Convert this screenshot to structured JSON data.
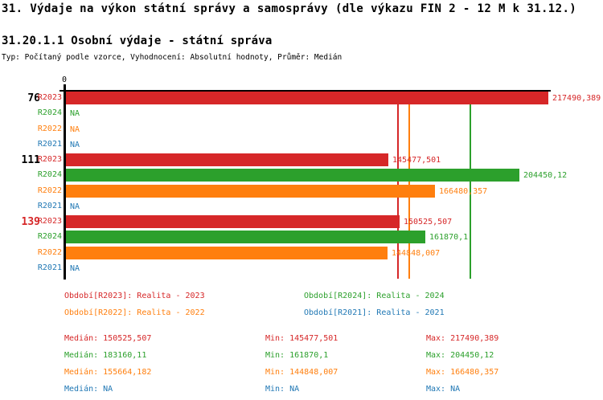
{
  "header": {
    "title": "31. Výdaje na výkon státní správy a samosprávy (dle výkazu FIN 2 - 12 M k 31.12.)",
    "subtitle": "31.20.1.1 Osobní výdaje - státní správa",
    "meta": "Typ: Počítaný podle vzorce, Vyhodnocení: Absolutní hodnoty, Průměr: Medián"
  },
  "colors": {
    "R2023": "#d62728",
    "R2024": "#2ca02c",
    "R2022": "#ff7f0e",
    "R2021": "#1f77b4",
    "axis": "#000000",
    "group_label_default": "#000000",
    "group_label_alert": "#d62728"
  },
  "chart_data": {
    "type": "bar",
    "orientation": "horizontal",
    "axis_origin_label": "0",
    "xlim": [
      0,
      217490.389
    ],
    "grid": false,
    "series_order": [
      "R2023",
      "R2024",
      "R2022",
      "R2021"
    ],
    "groups": [
      {
        "label": "76",
        "label_color": "#000000",
        "bars": [
          {
            "series": "R2023",
            "value": 217490.389,
            "label": "217490,389"
          },
          {
            "series": "R2024",
            "value": null,
            "label": "NA"
          },
          {
            "series": "R2022",
            "value": null,
            "label": "NA"
          },
          {
            "series": "R2021",
            "value": null,
            "label": "NA"
          }
        ]
      },
      {
        "label": "111",
        "label_color": "#000000",
        "bars": [
          {
            "series": "R2023",
            "value": 145477.501,
            "label": "145477,501"
          },
          {
            "series": "R2024",
            "value": 204450.12,
            "label": "204450,12"
          },
          {
            "series": "R2022",
            "value": 166480.357,
            "label": "166480,357"
          },
          {
            "series": "R2021",
            "value": null,
            "label": "NA"
          }
        ]
      },
      {
        "label": "139",
        "label_color": "#d62728",
        "bars": [
          {
            "series": "R2023",
            "value": 150525.507,
            "label": "150525,507"
          },
          {
            "series": "R2024",
            "value": 161870.1,
            "label": "161870,1"
          },
          {
            "series": "R2022",
            "value": 144848.007,
            "label": "144848,007"
          },
          {
            "series": "R2021",
            "value": null,
            "label": "NA"
          }
        ]
      }
    ],
    "median_lines": [
      {
        "series": "R2023",
        "value": 150525.507
      },
      {
        "series": "R2022",
        "value": 155664.182
      },
      {
        "series": "R2024",
        "value": 183160.11
      }
    ]
  },
  "legend": {
    "items": [
      {
        "series": "R2023",
        "label": "Období[R2023]: Realita - 2023"
      },
      {
        "series": "R2024",
        "label": "Období[R2024]: Realita - 2024"
      },
      {
        "series": "R2022",
        "label": "Období[R2022]: Realita - 2022"
      },
      {
        "series": "R2021",
        "label": "Období[R2021]: Realita - 2021"
      }
    ]
  },
  "stats": {
    "rows": [
      {
        "series": "R2023",
        "median": "Medián: 150525,507",
        "min": "Min: 145477,501",
        "max": "Max: 217490,389"
      },
      {
        "series": "R2024",
        "median": "Medián: 183160,11",
        "min": "Min: 161870,1",
        "max": "Max: 204450,12"
      },
      {
        "series": "R2022",
        "median": "Medián: 155664,182",
        "min": "Min: 144848,007",
        "max": "Max: 166480,357"
      },
      {
        "series": "R2021",
        "median": "Medián: NA",
        "min": "Min: NA",
        "max": "Max: NA"
      }
    ]
  }
}
